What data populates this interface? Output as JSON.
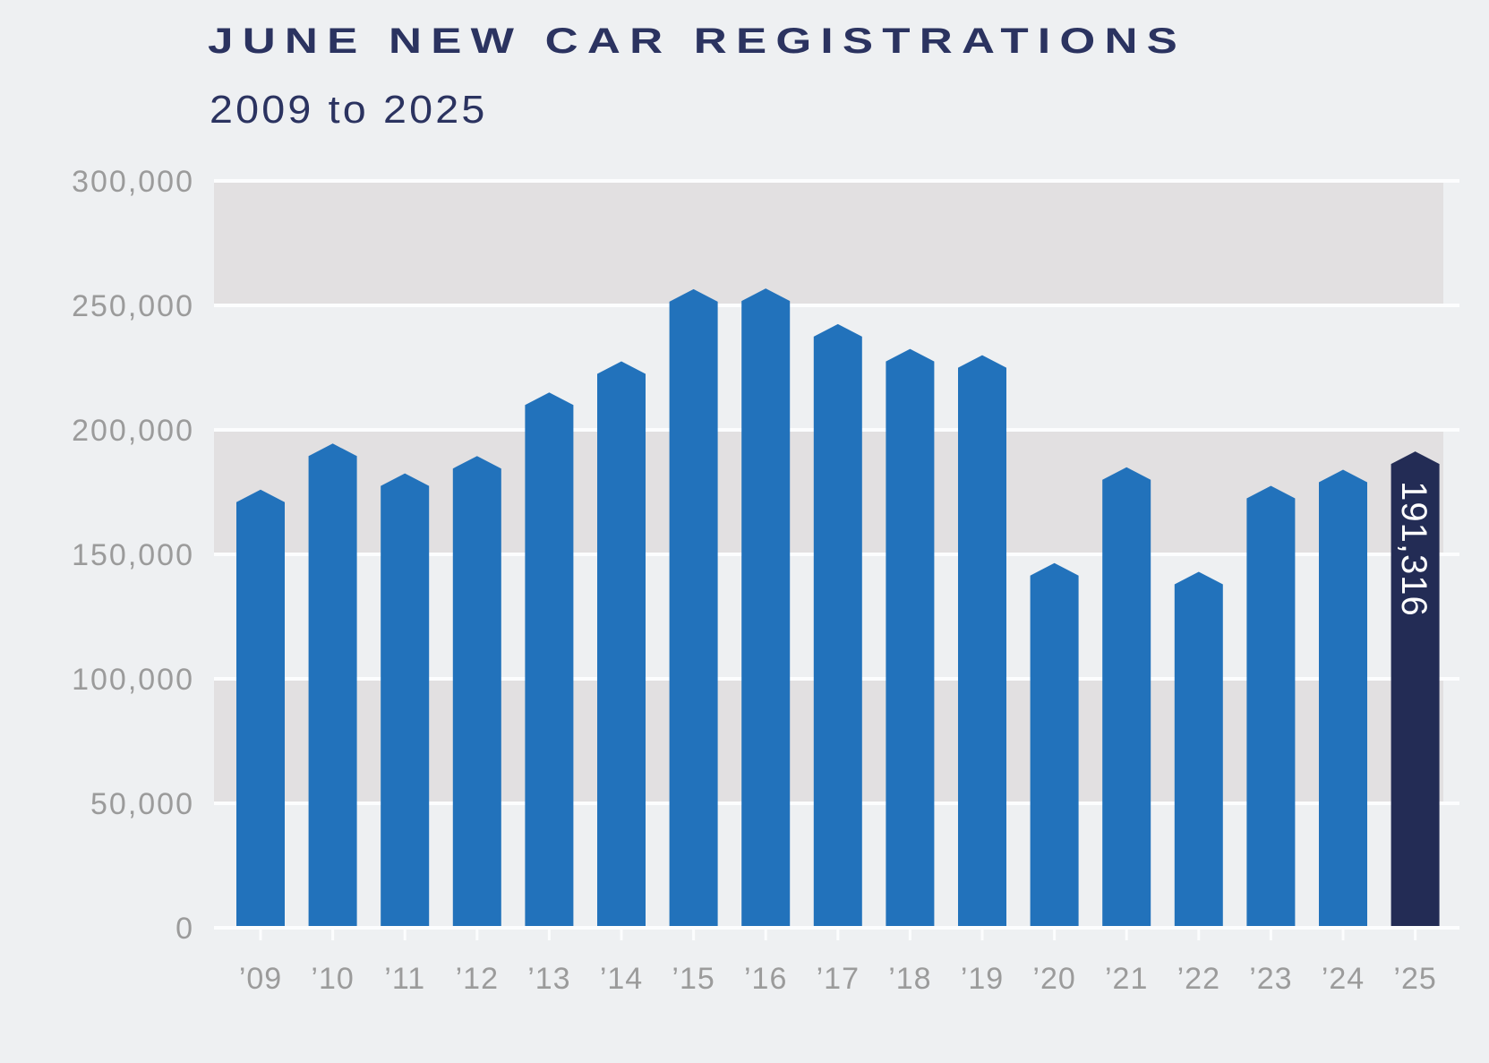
{
  "title": "JUNE NEW CAR REGISTRATIONS",
  "subtitle": "2009 to 2025",
  "chart_data": {
    "type": "bar",
    "title": "JUNE NEW CAR REGISTRATIONS",
    "subtitle": "2009 to 2025",
    "categories": [
      "’09",
      "’10",
      "’11",
      "’12",
      "’13",
      "’14",
      "’15",
      "’16",
      "’17",
      "’18",
      "’19",
      "’20",
      "’21",
      "’22",
      "’23",
      "’24",
      "’25"
    ],
    "years": [
      2009,
      2010,
      2011,
      2012,
      2013,
      2014,
      2015,
      2016,
      2017,
      2018,
      2019,
      2020,
      2021,
      2022,
      2023,
      2024,
      2025
    ],
    "values": [
      176000,
      194500,
      182500,
      189500,
      215000,
      227500,
      256500,
      256800,
      242500,
      232500,
      230000,
      146500,
      185000,
      143000,
      177500,
      184000,
      191316
    ],
    "highlight": {
      "year": 2025,
      "category": "’25",
      "value": 191316,
      "value_label": "191,316"
    },
    "y_axis": {
      "tick_labels": [
        "300,000",
        "250,000",
        "200,000",
        "150,000",
        "100,000",
        "50,000",
        "0"
      ],
      "tick_values": [
        300000,
        250000,
        200000,
        150000,
        100000,
        50000,
        0
      ],
      "range": [
        0,
        300000
      ]
    },
    "x_axis": {
      "tick_marks": true
    },
    "grid": "horizontal_bands",
    "legend": "none",
    "colors": {
      "bar_blue": "#2272bb",
      "highlight_navy": "#232c55",
      "band_gray": "#e2e0e1",
      "background": "#eef0f2",
      "gridline_white": "#fcfdfe",
      "axis_label_gray": "#9b9b9b",
      "title_navy": "#2b3360",
      "value_label_white": "#ffffff"
    }
  }
}
